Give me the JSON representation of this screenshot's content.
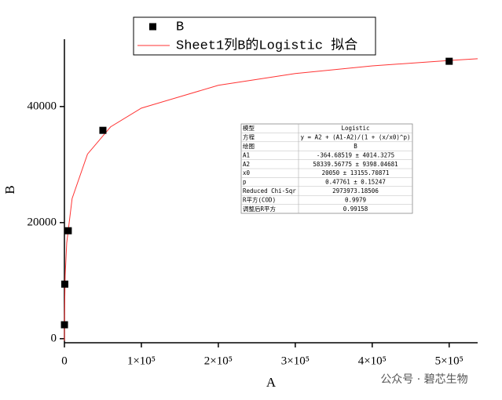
{
  "chart_data": {
    "type": "scatter",
    "xlabel": "A",
    "ylabel": "B",
    "xlim": [
      0,
      537000
    ],
    "ylim": [
      -700,
      51600
    ],
    "xticks": [
      0,
      {
        "value": 100000,
        "label": "1×10⁵"
      },
      {
        "value": 200000,
        "label": "2×10⁵"
      },
      {
        "value": 300000,
        "label": "3×10⁵"
      },
      {
        "value": 400000,
        "label": "4×10⁵"
      },
      {
        "value": 500000,
        "label": "5×10⁵"
      }
    ],
    "yticks": [
      0,
      20000,
      40000
    ],
    "legend": "top",
    "series": [
      {
        "name": "B",
        "style": "marker",
        "color": "#000000",
        "x": [
          50,
          500,
          5000,
          50000,
          500000
        ],
        "values": [
          2400,
          9400,
          18600,
          35900,
          47800
        ]
      },
      {
        "name": "Sheet1列B的Logistic 拟合",
        "style": "line",
        "color": "#ff3333",
        "x": [
          0,
          1,
          10,
          100,
          1000,
          3000,
          10000,
          30000,
          60000,
          100000,
          200000,
          300000,
          400000,
          500000,
          537000
        ],
        "values": [
          -364,
          149,
          1151,
          3959,
          10956,
          16513,
          24154,
          31804,
          36498,
          39729,
          43662,
          45691,
          46999,
          47942,
          48232
        ]
      }
    ],
    "table": {
      "rows": [
        [
          "模型",
          "Logistic"
        ],
        [
          "方程",
          "y = A2 + (A1-A2)/(1 + (x/x0)^p)"
        ],
        [
          "绘图",
          "B"
        ],
        [
          "A1",
          "-364.68519 ± 4014.3275"
        ],
        [
          "A2",
          "58339.56775 ± 9398.04681"
        ],
        [
          "x0",
          "20050 ± 13155.70871"
        ],
        [
          "p",
          "0.47761 ± 0.15247"
        ],
        [
          "Reduced Chi-Sqr",
          "2973973.18506"
        ],
        [
          "R平方(COD)",
          "0.9979"
        ],
        [
          "调整后R平方",
          "0.99158"
        ]
      ]
    }
  },
  "watermark": "公众号 · 碧芯生物"
}
